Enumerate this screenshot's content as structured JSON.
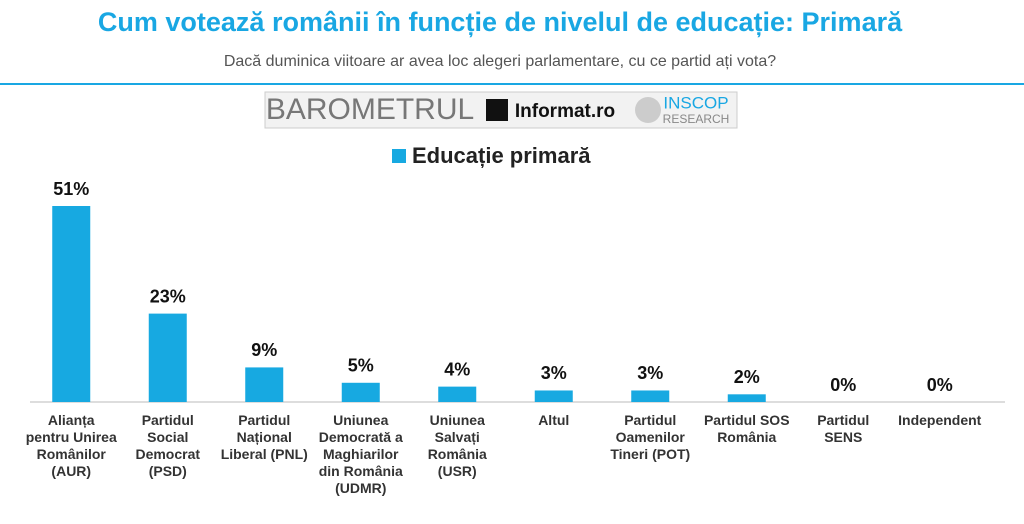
{
  "chart_data": {
    "type": "bar",
    "title": "Cum votează românii în funcție de nivelul de educație: Primară",
    "subtitle": "Dacă duminica viitoare ar avea loc alegeri parlamentare, cu ce partid ați vota?",
    "categories": [
      "Alianța pentru Unirea Românilor (AUR)",
      "Partidul Social Democrat (PSD)",
      "Partidul Național Liberal (PNL)",
      "Uniunea Democrată a Maghiarilor din România (UDMR)",
      "Uniunea Salvați România (USR)",
      "Altul",
      "Partidul Oamenilor Tineri (POT)",
      "Partidul SOS România",
      "Partidul SENS",
      "Independent"
    ],
    "series": [
      {
        "name": "Educație primară",
        "color": "#17a9e1",
        "values": [
          51,
          23,
          9,
          5,
          4,
          3,
          3,
          2,
          0,
          0
        ],
        "value_labels": [
          "51%",
          "23%",
          "9%",
          "5%",
          "4%",
          "3%",
          "3%",
          "2%",
          "0%",
          "0%"
        ]
      }
    ]
  },
  "logos": {
    "barometrul": "BAROMETRUL",
    "informat": "Informat.ro",
    "inscop": "INSCOP",
    "research": "RESEARCH"
  }
}
